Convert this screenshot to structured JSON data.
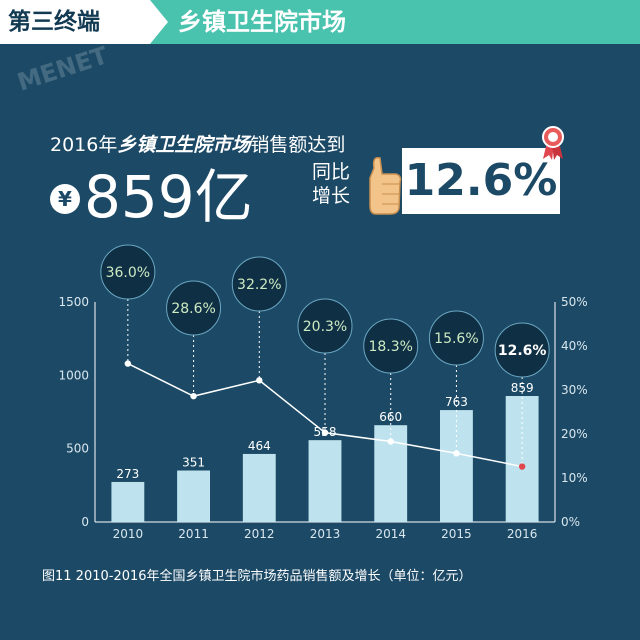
{
  "header": {
    "tag": "第三终端",
    "title": "乡镇卫生院市场"
  },
  "watermark": "MENET",
  "headline": {
    "year": "2016年",
    "market": "乡镇卫生院市场",
    "suffix": "销售额达到"
  },
  "amount": {
    "currency": "¥",
    "value": "859亿"
  },
  "yoy": {
    "label_line1": "同比",
    "label_line2": "增长",
    "value": "12.6%"
  },
  "icons": {
    "hand": "thumbs-up-hand-icon",
    "ribbon": "award-ribbon-icon"
  },
  "colors": {
    "background": "#1c4a66",
    "header": "#49c2ae",
    "bar": "#bfe3ee",
    "bubble": "#0f2f44",
    "bubble_text": "#cdeac3",
    "line": "#ffffff",
    "axis_text": "#d9e6ee"
  },
  "chart_data": {
    "type": "bar",
    "categories": [
      "2010",
      "2011",
      "2012",
      "2013",
      "2014",
      "2015",
      "2016"
    ],
    "series": [
      {
        "values": [
          273,
          351,
          464,
          558,
          660,
          763,
          859
        ],
        "axis": "left"
      },
      {
        "values": [
          36.0,
          28.6,
          32.2,
          20.3,
          18.3,
          15.6,
          12.6
        ],
        "axis": "right",
        "type": "line"
      }
    ],
    "data_labels": {
      "bars": [
        "273",
        "351",
        "464",
        "558",
        "660",
        "763",
        "859"
      ],
      "growth": [
        "36.0%",
        "28.6%",
        "32.2%",
        "20.3%",
        "18.3%",
        "15.6%",
        "12.6%"
      ]
    },
    "ylim_left": [
      0,
      1500
    ],
    "yticks_left": [
      "0",
      "500",
      "1000",
      "1500"
    ],
    "ylim_right": [
      0,
      50
    ],
    "yticks_right": [
      "0%",
      "10%",
      "20%",
      "30%",
      "40%",
      "50%"
    ],
    "grid": false,
    "caption": "图11  2010-2016年全国乡镇卫生院市场药品销售额及增长（单位：亿元）"
  }
}
